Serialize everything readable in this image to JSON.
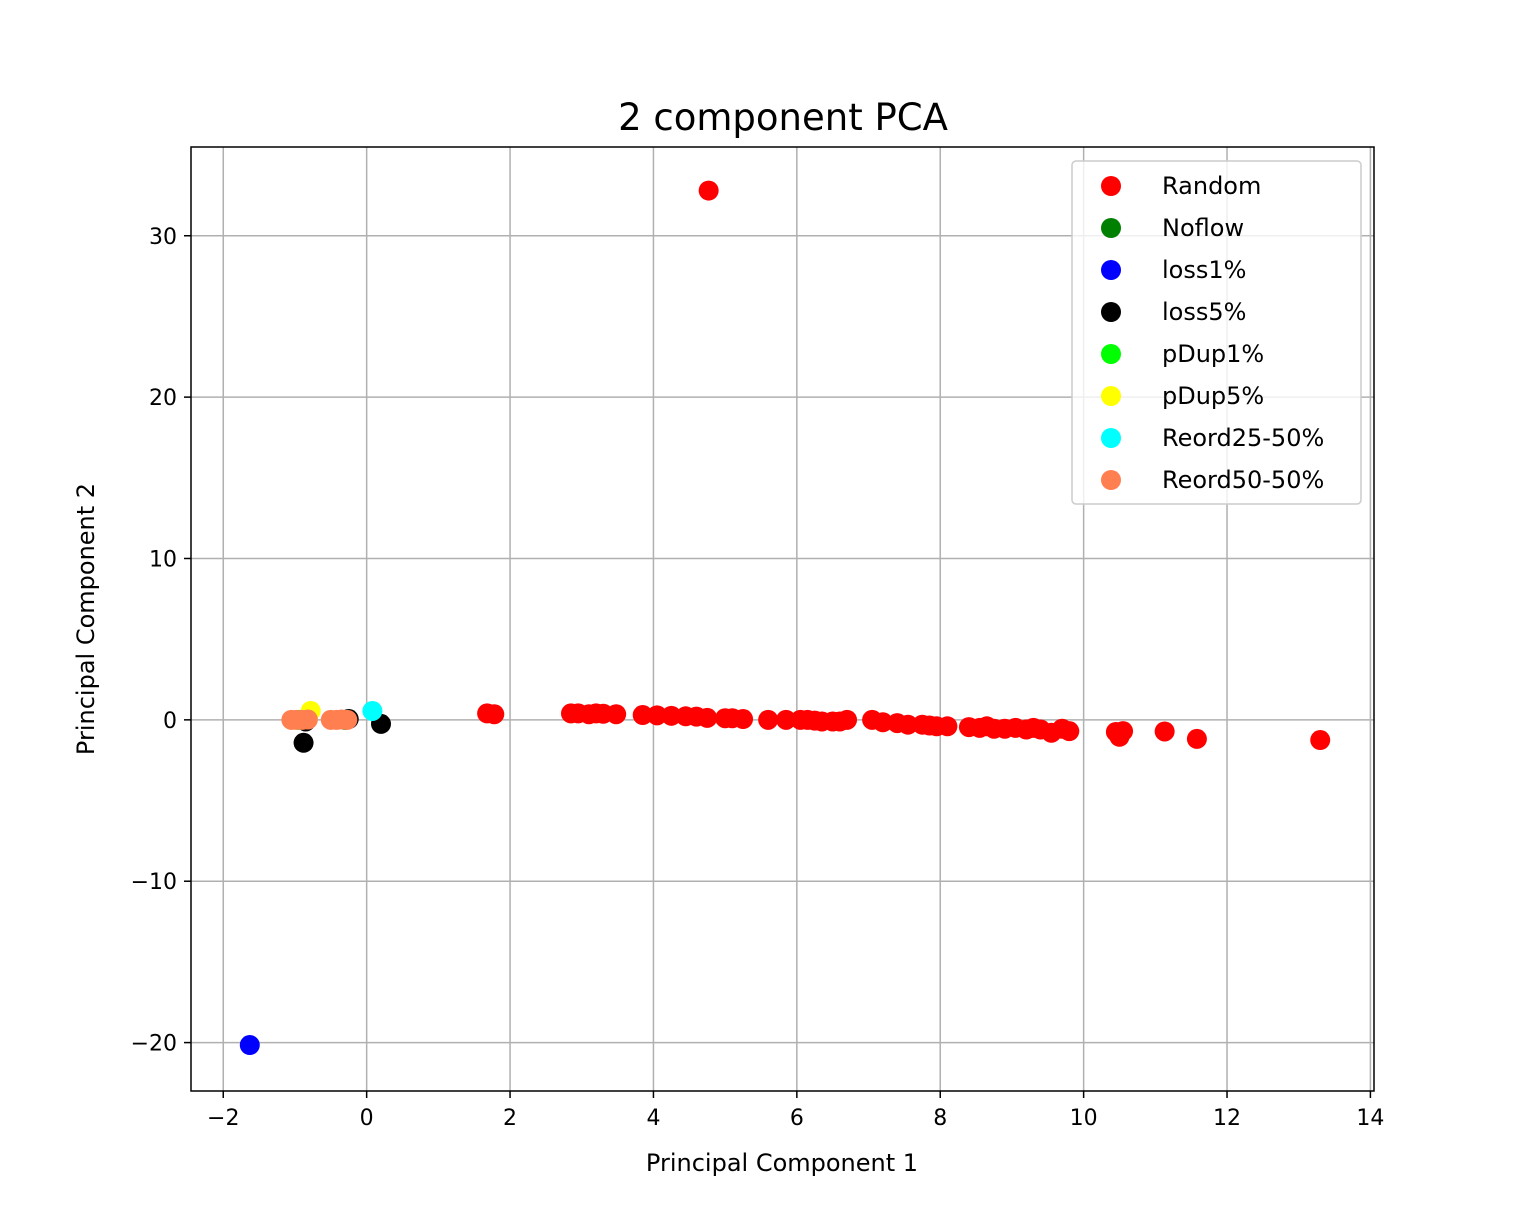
{
  "chart_data": {
    "type": "scatter",
    "title": "2 component PCA",
    "xlabel": "Principal Component 1",
    "ylabel": "Principal Component 2",
    "xlim": [
      -2.45,
      14.05
    ],
    "ylim": [
      -23.0,
      35.5
    ],
    "xticks": [
      -2,
      0,
      2,
      4,
      6,
      8,
      10,
      12,
      14
    ],
    "xtick_labels": [
      "−2",
      "0",
      "2",
      "4",
      "6",
      "8",
      "10",
      "12",
      "14"
    ],
    "yticks": [
      -20,
      -10,
      0,
      10,
      20,
      30
    ],
    "ytick_labels": [
      "−20",
      "−10",
      "0",
      "10",
      "20",
      "30"
    ],
    "grid": true,
    "legend_position": "top-right",
    "series": [
      {
        "name": "Random",
        "color": "#ff0000",
        "points": [
          [
            4.77,
            32.8
          ],
          [
            1.68,
            0.4
          ],
          [
            1.78,
            0.35
          ],
          [
            2.85,
            0.4
          ],
          [
            2.95,
            0.4
          ],
          [
            3.1,
            0.35
          ],
          [
            3.2,
            0.4
          ],
          [
            3.3,
            0.38
          ],
          [
            3.48,
            0.35
          ],
          [
            3.85,
            0.3
          ],
          [
            4.05,
            0.28
          ],
          [
            4.25,
            0.25
          ],
          [
            4.45,
            0.22
          ],
          [
            4.6,
            0.2
          ],
          [
            4.75,
            0.12
          ],
          [
            5.0,
            0.1
          ],
          [
            5.1,
            0.1
          ],
          [
            5.25,
            0.05
          ],
          [
            5.6,
            0.0
          ],
          [
            5.85,
            0.0
          ],
          [
            6.05,
            0.0
          ],
          [
            6.15,
            0.0
          ],
          [
            6.25,
            -0.05
          ],
          [
            6.35,
            -0.1
          ],
          [
            6.5,
            -0.1
          ],
          [
            6.6,
            -0.1
          ],
          [
            6.7,
            0.0
          ],
          [
            7.05,
            0.0
          ],
          [
            7.2,
            -0.15
          ],
          [
            7.4,
            -0.2
          ],
          [
            7.55,
            -0.3
          ],
          [
            7.75,
            -0.3
          ],
          [
            7.85,
            -0.35
          ],
          [
            7.95,
            -0.4
          ],
          [
            8.1,
            -0.4
          ],
          [
            8.4,
            -0.45
          ],
          [
            8.55,
            -0.5
          ],
          [
            8.65,
            -0.4
          ],
          [
            8.75,
            -0.55
          ],
          [
            8.9,
            -0.55
          ],
          [
            9.05,
            -0.5
          ],
          [
            9.2,
            -0.6
          ],
          [
            9.3,
            -0.5
          ],
          [
            9.4,
            -0.6
          ],
          [
            9.55,
            -0.8
          ],
          [
            9.7,
            -0.55
          ],
          [
            9.8,
            -0.7
          ],
          [
            10.45,
            -0.75
          ],
          [
            10.5,
            -1.05
          ],
          [
            10.55,
            -0.7
          ],
          [
            11.13,
            -0.72
          ],
          [
            11.58,
            -1.18
          ],
          [
            13.3,
            -1.25
          ]
        ]
      },
      {
        "name": "Noflow",
        "color": "#008000",
        "points": [
          [
            -0.9,
            0.0
          ],
          [
            -0.3,
            0.0
          ]
        ]
      },
      {
        "name": "loss1%",
        "color": "#0000ff",
        "points": [
          [
            -1.63,
            -20.15
          ]
        ]
      },
      {
        "name": "loss5%",
        "color": "#000000",
        "points": [
          [
            -0.88,
            -1.42
          ],
          [
            -0.85,
            -0.1
          ],
          [
            -0.25,
            0.05
          ],
          [
            0.2,
            -0.25
          ]
        ]
      },
      {
        "name": "pDup1%",
        "color": "#00ff00",
        "points": [
          [
            -0.95,
            0.0
          ]
        ]
      },
      {
        "name": "pDup5%",
        "color": "#ffff00",
        "points": [
          [
            -0.78,
            0.55
          ]
        ]
      },
      {
        "name": "Reord25-50%",
        "color": "#00ffff",
        "points": [
          [
            0.08,
            0.55
          ]
        ]
      },
      {
        "name": "Reord50-50%",
        "color": "#ff7f50",
        "points": [
          [
            -1.05,
            0.0
          ],
          [
            -0.98,
            0.0
          ],
          [
            -0.9,
            0.0
          ],
          [
            -0.82,
            0.02
          ],
          [
            -0.5,
            0.0
          ],
          [
            -0.42,
            0.0
          ],
          [
            -0.35,
            0.02
          ],
          [
            -0.27,
            0.0
          ]
        ]
      }
    ]
  }
}
